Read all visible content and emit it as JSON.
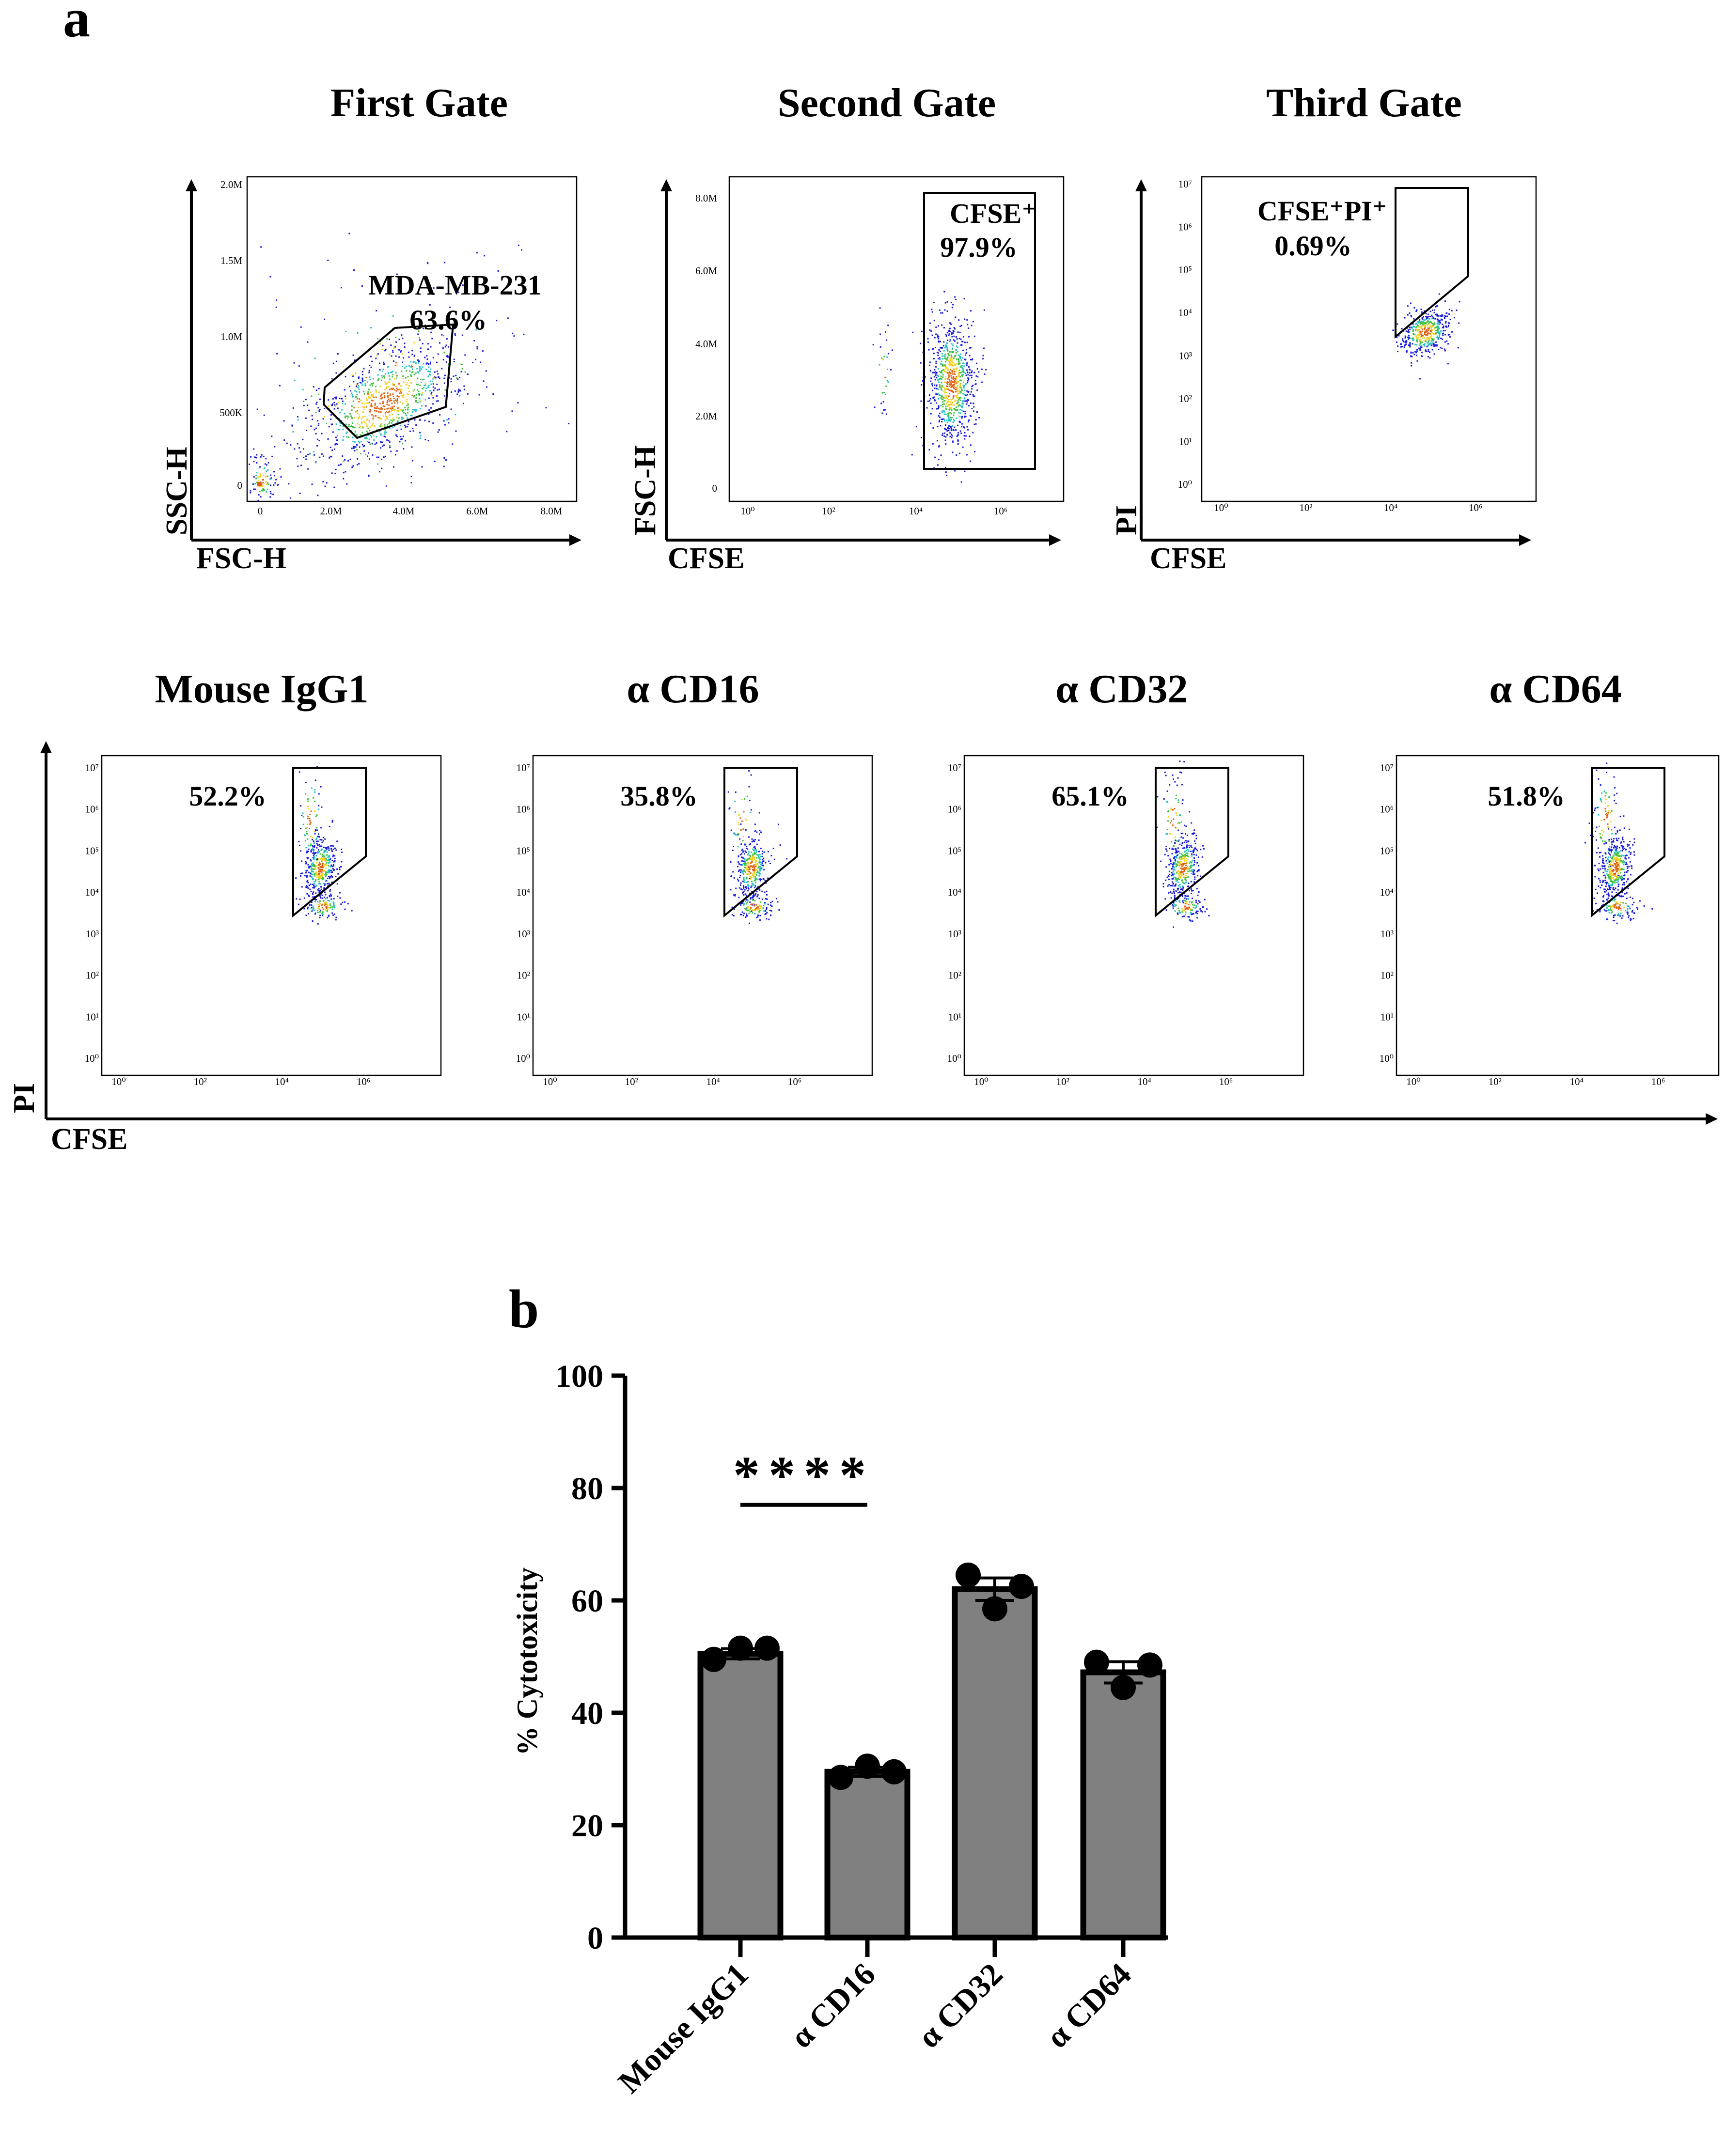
{
  "panel_a": {
    "letter": "a",
    "gates": [
      {
        "title": "First Gate",
        "x_label": "FSC-H",
        "y_label": "SSC-H",
        "gate_label": "MDA-MB-231",
        "gate_value": "63.6%",
        "x_ticks": [
          "0",
          "2.0M",
          "4.0M",
          "6.0M",
          "8.0M"
        ],
        "y_ticks": [
          "0",
          "500K",
          "1.0M",
          "1.5M",
          "2.0M"
        ]
      },
      {
        "title": "Second Gate",
        "x_label": "CFSE",
        "y_label": "FSC-H",
        "gate_label": "CFSE⁺",
        "gate_value": "97.9%",
        "x_ticks": [
          "10⁰",
          "10²",
          "10⁴",
          "10⁶"
        ],
        "y_ticks": [
          "0",
          "2.0M",
          "4.0M",
          "6.0M",
          "8.0M"
        ]
      },
      {
        "title": "Third Gate",
        "x_label": "CFSE",
        "y_label": "PI",
        "gate_label": "CFSE⁺PI⁺",
        "gate_value": "0.69%",
        "x_ticks": [
          "10⁰",
          "10²",
          "10⁴",
          "10⁶"
        ],
        "y_ticks": [
          "10⁰",
          "10¹",
          "10²",
          "10³",
          "10⁴",
          "10⁵",
          "10⁶",
          "10⁷"
        ]
      }
    ],
    "treatments": [
      {
        "title": "Mouse IgG1",
        "gate_value": "52.2%"
      },
      {
        "title": "α CD16",
        "gate_value": "35.8%"
      },
      {
        "title": "α CD32",
        "gate_value": "65.1%"
      },
      {
        "title": "α CD64",
        "gate_value": "51.8%"
      }
    ],
    "treatment_x_label": "CFSE",
    "treatment_y_label": "PI",
    "log_x_ticks": [
      "10⁰",
      "10²",
      "10⁴",
      "10⁶"
    ],
    "log_y_ticks": [
      "10⁰",
      "10¹",
      "10²",
      "10³",
      "10⁴",
      "10⁵",
      "10⁶",
      "10⁷"
    ]
  },
  "chart_data": {
    "type": "bar",
    "panel_letter": "b",
    "categories": [
      "Mouse IgG1",
      "α CD16",
      "α CD32",
      "α CD64"
    ],
    "values": [
      50.5,
      29.5,
      62,
      47.2
    ],
    "error": [
      0.9,
      0.8,
      2.0,
      1.9
    ],
    "points": [
      [
        49.5,
        51.5,
        51.5
      ],
      [
        28.5,
        30.5,
        29.5
      ],
      [
        64.5,
        58.5,
        62.5
      ],
      [
        49,
        44.5,
        48.5
      ]
    ],
    "ylabel": "% Cytotoxicity",
    "xlabel": "",
    "ylim": [
      0,
      100
    ],
    "yticks": [
      0,
      20,
      40,
      60,
      80,
      100
    ],
    "significance": {
      "label": "****",
      "from": "Mouse IgG1",
      "to": "α CD16",
      "y": 77
    },
    "bar_color": "#808080",
    "point_color": "#000000"
  }
}
